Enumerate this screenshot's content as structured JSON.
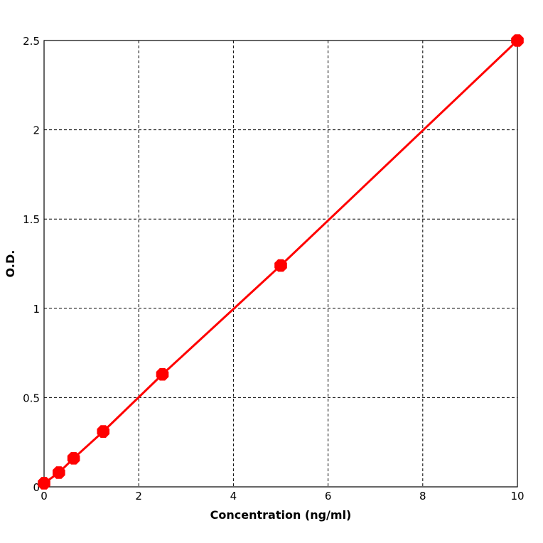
{
  "chart_data": {
    "type": "line",
    "title": "",
    "xlabel": "Concentration (ng/ml)",
    "ylabel": "O.D.",
    "xlim": [
      0,
      10
    ],
    "ylim": [
      0,
      2.5
    ],
    "xticks": [
      0,
      2,
      4,
      6,
      8,
      10
    ],
    "yticks": [
      0,
      0.5,
      1,
      1.5,
      2,
      2.5
    ],
    "xtick_labels": [
      "0",
      "2",
      "4",
      "6",
      "8",
      "10"
    ],
    "ytick_labels": [
      "0",
      "0.5",
      "1",
      "1.5",
      "2",
      "2.5"
    ],
    "grid": true,
    "legend": "none",
    "series": [
      {
        "color": "#ff0000",
        "x": [
          0,
          0.3125,
          0.625,
          1.25,
          2.5,
          5,
          10
        ],
        "y": [
          0.02,
          0.08,
          0.16,
          0.31,
          0.63,
          1.24,
          2.5
        ]
      }
    ]
  }
}
